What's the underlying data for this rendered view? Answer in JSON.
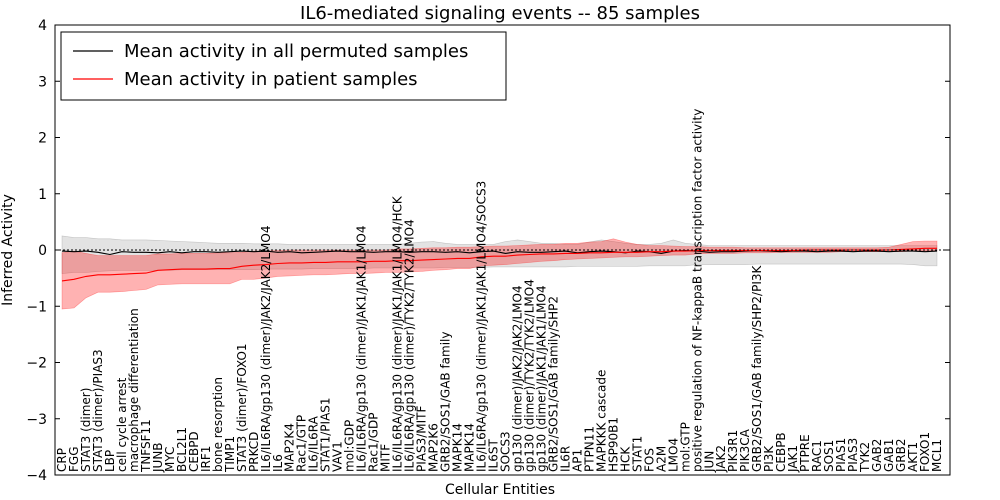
{
  "chart_data": {
    "type": "line",
    "title": "IL6-mediated signaling events -- 85 samples",
    "xlabel": "Cellular Entities",
    "ylabel": "Inferred Activity",
    "ylim": [
      -4,
      4
    ],
    "yticks": [
      -4,
      -3,
      -2,
      -1,
      0,
      1,
      2,
      3,
      4
    ],
    "ytick_labels": [
      "−4",
      "−3",
      "−2",
      "−1",
      "0",
      "1",
      "2",
      "3",
      "4"
    ],
    "legend": {
      "placement": "top-left",
      "entries": [
        {
          "name": "Mean activity in all permuted samples",
          "color": "#000000"
        },
        {
          "name": "Mean activity in patient samples",
          "color": "#ff0000"
        }
      ]
    },
    "categories": [
      "CRP",
      "FGG",
      "STAT3 (dimer)",
      "STAT3 (dimer)/PIAS3",
      "LBP",
      "cell cycle arrest",
      "macrophage differentiation",
      "TNFSF11",
      "JUNB",
      "MYC",
      "BCL2L1",
      "CEBPD",
      "IRF1",
      "bone resorption",
      "TIMP1",
      "STAT3 (dimer)/FOXO1",
      "PRKCD",
      "IL6/IL6RA/gp130 (dimer)/JAK2/JAK2/LMO4",
      "IL6",
      "MAP2K4",
      "Rac1/GTP",
      "IL6/IL6RA",
      "STAT1/PIAS1",
      "VAV1",
      "mol:GDP",
      "IL6/IL6RA/gp130 (dimer)/JAK1/JAK1/LMO4",
      "Rac1/GDP",
      "MITF",
      "IL6/IL6RA/gp130 (dimer)/JAK1/JAK1/LMO4/HCK",
      "IL6/IL6RA/gp130 (dimer)/TYK2/TYK2/LMO4",
      "PIAS3/MITF",
      "MAP2K6",
      "GRB2/SOS1/GAB family",
      "MAPK14",
      "MAPK14",
      "IL6/IL6RA/gp130 (dimer)/JAK1/JAK1/LMO4/SOCS3",
      "IL6ST",
      "SOCS3",
      "gp130 (dimer)/JAK2/JAK2/LMO4",
      "gp130 (dimer)/TYK2/TYK2/LMO4",
      "gp130 (dimer)/JAK1/JAK1/LMO4",
      "GRB2/SOS1/GAB family/SHP2",
      "IL6R",
      "AP1",
      "PTPN11",
      "MAPKKK cascade",
      "HSP90B1",
      "HCK",
      "STAT1",
      "FOS",
      "A2M",
      "LMO4",
      "mol:GTP",
      "positive regulation of NF-kappaB transcription factor activity",
      "JUN",
      "JAK2",
      "PIK3R1",
      "PIK3CA",
      "GRB2/SOS1/GAB family/SHP2/PI3K",
      "PI3K",
      "CEBPB",
      "JAK1",
      "PTPRE",
      "RAC1",
      "SOS1",
      "PIAS1",
      "PIAS3",
      "TYK2",
      "GAB2",
      "GAB1",
      "GRB2",
      "AKT1",
      "FOXO1",
      "MCL1"
    ],
    "series": [
      {
        "name": "Mean activity in patient samples",
        "color": "#ff0000",
        "values": [
          -0.55,
          -0.52,
          -0.47,
          -0.44,
          -0.44,
          -0.43,
          -0.42,
          -0.41,
          -0.36,
          -0.35,
          -0.34,
          -0.34,
          -0.34,
          -0.33,
          -0.33,
          -0.29,
          -0.27,
          -0.26,
          -0.24,
          -0.23,
          -0.23,
          -0.22,
          -0.22,
          -0.21,
          -0.21,
          -0.21,
          -0.2,
          -0.2,
          -0.19,
          -0.19,
          -0.18,
          -0.17,
          -0.16,
          -0.15,
          -0.15,
          -0.12,
          -0.11,
          -0.11,
          -0.09,
          -0.08,
          -0.07,
          -0.07,
          -0.06,
          -0.06,
          -0.05,
          -0.05,
          -0.04,
          -0.04,
          -0.04,
          -0.03,
          -0.03,
          -0.02,
          -0.02,
          -0.01,
          -0.01,
          -0.01,
          -0.01,
          -0.01,
          -0.01,
          -0.01,
          -0.01,
          -0.01,
          0.0,
          0.0,
          0.0,
          0.0,
          0.0,
          0.0,
          0.0,
          0.0,
          0.01,
          0.02,
          0.03,
          0.03
        ],
        "lower": [
          -1.05,
          -1.03,
          -0.85,
          -0.75,
          -0.75,
          -0.74,
          -0.72,
          -0.7,
          -0.62,
          -0.61,
          -0.6,
          -0.6,
          -0.6,
          -0.6,
          -0.6,
          -0.52,
          -0.52,
          -0.5,
          -0.47,
          -0.46,
          -0.45,
          -0.44,
          -0.44,
          -0.43,
          -0.42,
          -0.42,
          -0.41,
          -0.4,
          -0.4,
          -0.39,
          -0.38,
          -0.36,
          -0.35,
          -0.33,
          -0.33,
          -0.28,
          -0.27,
          -0.26,
          -0.24,
          -0.22,
          -0.2,
          -0.19,
          -0.17,
          -0.16,
          -0.15,
          -0.14,
          -0.13,
          -0.12,
          -0.12,
          -0.11,
          -0.1,
          -0.09,
          -0.09,
          -0.07,
          -0.06,
          -0.06,
          -0.06,
          -0.05,
          -0.05,
          -0.05,
          -0.04,
          -0.04,
          -0.04,
          -0.04,
          -0.04,
          -0.03,
          -0.03,
          -0.03,
          -0.03,
          -0.03,
          -0.03,
          -0.02,
          -0.02,
          -0.02
        ],
        "upper": [
          -0.05,
          -0.02,
          -0.06,
          -0.1,
          -0.1,
          -0.1,
          -0.1,
          -0.1,
          -0.07,
          -0.07,
          -0.06,
          -0.06,
          -0.06,
          -0.05,
          -0.05,
          -0.04,
          -0.02,
          -0.02,
          -0.01,
          0.0,
          0.0,
          0.0,
          0.0,
          0.0,
          0.0,
          0.0,
          0.0,
          0.0,
          0.02,
          0.02,
          0.03,
          0.04,
          0.04,
          0.05,
          0.05,
          0.06,
          0.07,
          0.07,
          0.08,
          0.09,
          0.1,
          0.1,
          0.12,
          0.12,
          0.14,
          0.15,
          0.2,
          0.14,
          0.1,
          0.08,
          0.08,
          0.07,
          0.06,
          0.06,
          0.05,
          0.05,
          0.05,
          0.04,
          0.04,
          0.04,
          0.04,
          0.04,
          0.04,
          0.04,
          0.04,
          0.04,
          0.04,
          0.04,
          0.04,
          0.05,
          0.1,
          0.15,
          0.16,
          0.16
        ]
      },
      {
        "name": "Mean activity in all permuted samples",
        "color": "#000000",
        "values": [
          -0.02,
          -0.03,
          -0.02,
          -0.04,
          -0.08,
          -0.03,
          -0.04,
          -0.04,
          -0.05,
          -0.03,
          -0.05,
          -0.03,
          -0.03,
          -0.04,
          -0.03,
          -0.02,
          -0.03,
          -0.02,
          -0.04,
          -0.03,
          -0.05,
          -0.04,
          -0.03,
          -0.02,
          -0.03,
          -0.03,
          -0.04,
          -0.03,
          -0.03,
          -0.04,
          -0.03,
          -0.03,
          -0.04,
          -0.03,
          -0.05,
          -0.03,
          -0.02,
          -0.06,
          -0.03,
          -0.04,
          -0.04,
          -0.03,
          -0.02,
          -0.05,
          -0.03,
          -0.02,
          -0.03,
          -0.05,
          -0.02,
          -0.03,
          -0.06,
          -0.02,
          -0.01,
          -0.02,
          -0.04,
          -0.03,
          -0.03,
          -0.02,
          -0.01,
          -0.02,
          -0.03,
          -0.02,
          -0.02,
          -0.03,
          -0.02,
          -0.02,
          -0.03,
          -0.02,
          -0.02,
          -0.03,
          -0.02,
          -0.02,
          -0.03,
          -0.02
        ],
        "lower": [
          -0.42,
          -0.4,
          -0.4,
          -0.38,
          -0.37,
          -0.36,
          -0.36,
          -0.36,
          -0.36,
          -0.36,
          -0.35,
          -0.35,
          -0.35,
          -0.35,
          -0.35,
          -0.35,
          -0.35,
          -0.34,
          -0.34,
          -0.34,
          -0.34,
          -0.33,
          -0.33,
          -0.33,
          -0.33,
          -0.33,
          -0.32,
          -0.32,
          -0.32,
          -0.32,
          -0.32,
          -0.32,
          -0.31,
          -0.31,
          -0.31,
          -0.31,
          -0.3,
          -0.3,
          -0.3,
          -0.3,
          -0.3,
          -0.3,
          -0.3,
          -0.29,
          -0.29,
          -0.29,
          -0.29,
          -0.29,
          -0.29,
          -0.28,
          -0.28,
          -0.28,
          -0.28,
          -0.26,
          -0.26,
          -0.26,
          -0.26,
          -0.26,
          -0.25,
          -0.25,
          -0.25,
          -0.25,
          -0.25,
          -0.25,
          -0.25,
          -0.25,
          -0.25,
          -0.25,
          -0.25,
          -0.25,
          -0.25,
          -0.26,
          -0.28,
          -0.28
        ],
        "upper": [
          0.25,
          0.22,
          0.22,
          0.2,
          0.2,
          0.18,
          0.18,
          0.18,
          0.17,
          0.16,
          0.15,
          0.14,
          0.13,
          0.12,
          0.12,
          0.12,
          0.11,
          0.11,
          0.11,
          0.1,
          0.1,
          0.1,
          0.1,
          0.1,
          0.1,
          0.1,
          0.1,
          0.1,
          0.1,
          0.12,
          0.14,
          0.15,
          0.12,
          0.1,
          0.1,
          0.1,
          0.1,
          0.15,
          0.18,
          0.15,
          0.12,
          0.12,
          0.1,
          0.1,
          0.14,
          0.18,
          0.15,
          0.12,
          0.1,
          0.1,
          0.12,
          0.18,
          0.12,
          0.1,
          0.08,
          0.08,
          0.08,
          0.08,
          0.08,
          0.08,
          0.08,
          0.08,
          0.08,
          0.08,
          0.08,
          0.08,
          0.08,
          0.08,
          0.08,
          0.08,
          0.08,
          0.08,
          0.08,
          0.08
        ]
      }
    ]
  }
}
